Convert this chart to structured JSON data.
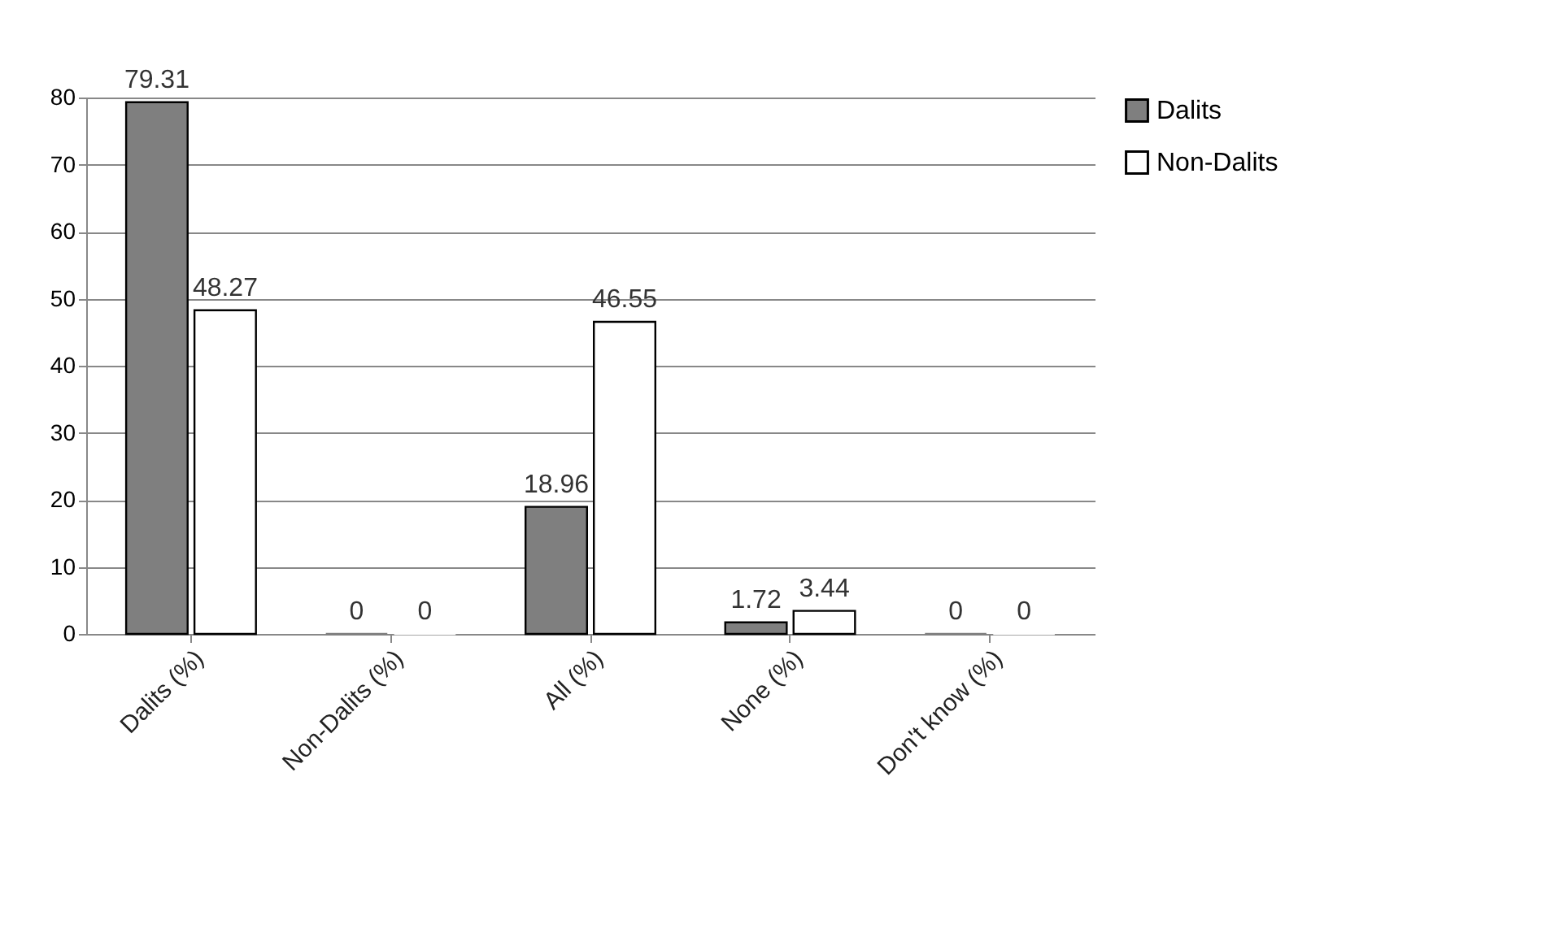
{
  "chart_data": {
    "type": "bar",
    "categories": [
      "Dalits (%)",
      "Non-Dalits (%)",
      "All (%)",
      "None (%)",
      "Don't know (%)"
    ],
    "series": [
      {
        "name": "Dalits",
        "color": "#7f7f7f",
        "values": [
          79.31,
          0,
          18.96,
          1.72,
          0
        ]
      },
      {
        "name": "Non-Dalits",
        "color": "#ffffff",
        "values": [
          48.27,
          0,
          46.55,
          3.44,
          0
        ]
      }
    ],
    "ylim": [
      0,
      80
    ],
    "yticks": [
      0,
      10,
      20,
      30,
      40,
      50,
      60,
      70,
      80
    ],
    "grid": "y",
    "legend": "right",
    "data_labels": true
  }
}
